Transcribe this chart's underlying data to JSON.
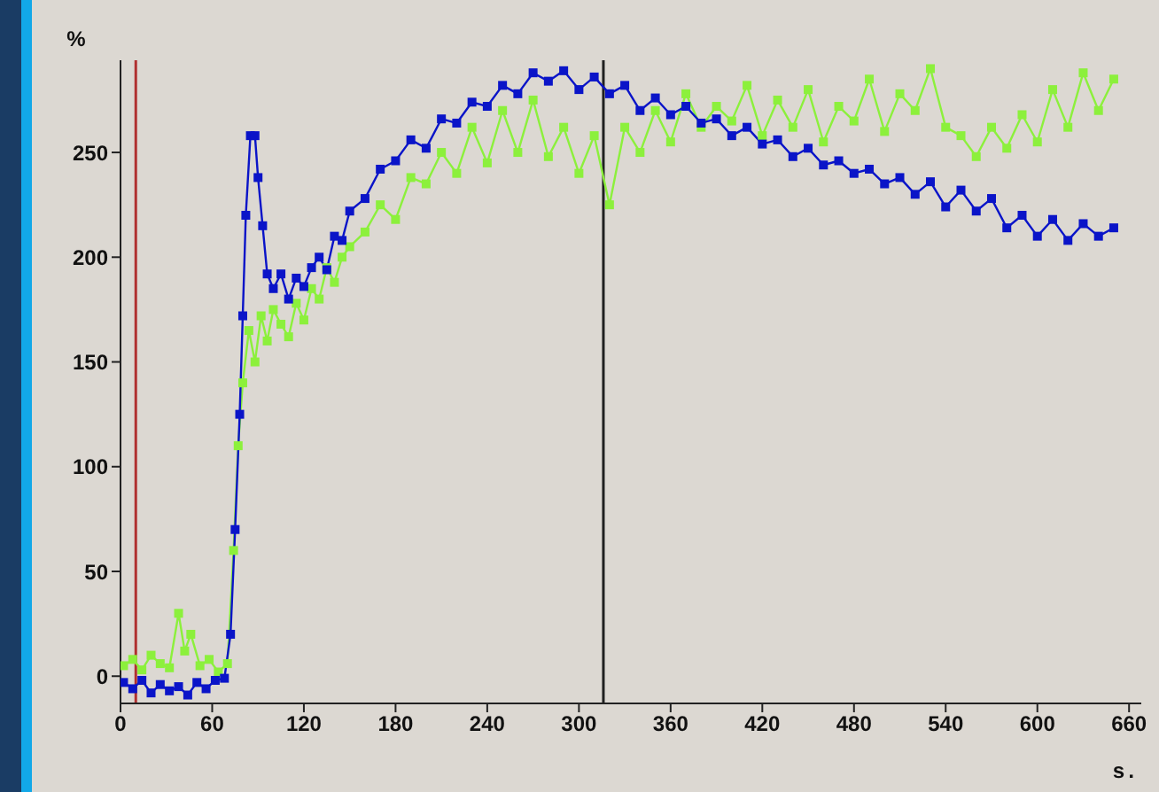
{
  "chart_data": {
    "type": "line",
    "ylabel": "%",
    "xlabel": "s.",
    "xlim": [
      0,
      668
    ],
    "ylim": [
      -13,
      294
    ],
    "xticks": [
      0,
      60,
      120,
      180,
      240,
      300,
      360,
      420,
      480,
      540,
      600,
      660
    ],
    "yticks": [
      0,
      50,
      100,
      150,
      200,
      250
    ],
    "legend": false,
    "marker": "square",
    "line_style": "solid",
    "ref_lines": [
      {
        "axis": "x",
        "value": 10,
        "color": "#b03030"
      },
      {
        "axis": "x",
        "value": 316,
        "color": "#202020"
      }
    ],
    "series": [
      {
        "color": "#8cf03c",
        "x": [
          2,
          8,
          14,
          20,
          26,
          32,
          38,
          42,
          46,
          52,
          58,
          64,
          70,
          74,
          77,
          80,
          84,
          88,
          92,
          96,
          100,
          105,
          110,
          115,
          120,
          125,
          130,
          135,
          140,
          145,
          150,
          160,
          170,
          180,
          190,
          200,
          210,
          220,
          230,
          240,
          250,
          260,
          270,
          280,
          290,
          300,
          310,
          320,
          330,
          340,
          350,
          360,
          370,
          380,
          390,
          400,
          410,
          420,
          430,
          440,
          450,
          460,
          470,
          480,
          490,
          500,
          510,
          520,
          530,
          540,
          550,
          560,
          570,
          580,
          590,
          600,
          610,
          620,
          630,
          640,
          650
        ],
        "values": [
          5,
          8,
          3,
          10,
          6,
          4,
          30,
          12,
          20,
          5,
          8,
          2,
          6,
          60,
          110,
          140,
          165,
          150,
          172,
          160,
          175,
          168,
          162,
          178,
          170,
          185,
          180,
          195,
          188,
          200,
          205,
          212,
          225,
          218,
          238,
          235,
          250,
          240,
          262,
          245,
          270,
          250,
          275,
          248,
          262,
          240,
          258,
          225,
          262,
          250,
          270,
          255,
          278,
          262,
          272,
          265,
          282,
          258,
          275,
          262,
          280,
          255,
          272,
          265,
          285,
          260,
          278,
          270,
          290,
          262,
          258,
          248,
          262,
          252,
          268,
          255,
          280,
          262,
          288,
          270,
          285
        ]
      },
      {
        "color": "#0a14c8",
        "x": [
          2,
          8,
          14,
          20,
          26,
          32,
          38,
          44,
          50,
          56,
          62,
          68,
          72,
          75,
          78,
          80,
          82,
          85,
          88,
          90,
          93,
          96,
          100,
          105,
          110,
          115,
          120,
          125,
          130,
          135,
          140,
          145,
          150,
          160,
          170,
          180,
          190,
          200,
          210,
          220,
          230,
          240,
          250,
          260,
          270,
          280,
          290,
          300,
          310,
          320,
          330,
          340,
          350,
          360,
          370,
          380,
          390,
          400,
          410,
          420,
          430,
          440,
          450,
          460,
          470,
          480,
          490,
          500,
          510,
          520,
          530,
          540,
          550,
          560,
          570,
          580,
          590,
          600,
          610,
          620,
          630,
          640,
          650
        ],
        "values": [
          -3,
          -6,
          -2,
          -8,
          -4,
          -7,
          -5,
          -9,
          -3,
          -6,
          -2,
          -1,
          20,
          70,
          125,
          172,
          220,
          258,
          258,
          238,
          215,
          192,
          185,
          192,
          180,
          190,
          186,
          195,
          200,
          194,
          210,
          208,
          222,
          228,
          242,
          246,
          256,
          252,
          266,
          264,
          274,
          272,
          282,
          278,
          288,
          284,
          289,
          280,
          286,
          278,
          282,
          270,
          276,
          268,
          272,
          264,
          266,
          258,
          262,
          254,
          256,
          248,
          252,
          244,
          246,
          240,
          242,
          235,
          238,
          230,
          236,
          224,
          232,
          222,
          228,
          214,
          220,
          210,
          218,
          208,
          216,
          210,
          214
        ]
      }
    ]
  }
}
